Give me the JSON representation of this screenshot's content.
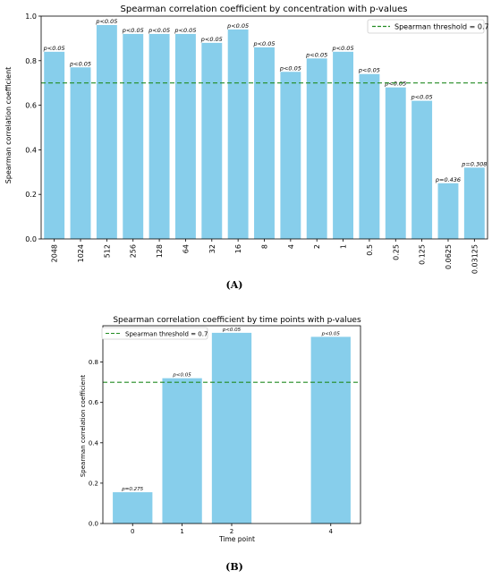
{
  "chart_data": [
    {
      "type": "bar",
      "title": "Spearman correlation coefficient by concentration with p-values",
      "xlabel": "",
      "ylabel": "Spearman correlation coefficient",
      "categories": [
        "2048",
        "1024",
        "512",
        "256",
        "128",
        "64",
        "32",
        "16",
        "8",
        "4",
        "2",
        "1",
        "0.5",
        "0.25",
        "0.125",
        "0.0625",
        "0.03125"
      ],
      "values": [
        0.84,
        0.77,
        0.96,
        0.92,
        0.92,
        0.92,
        0.88,
        0.94,
        0.86,
        0.75,
        0.81,
        0.84,
        0.74,
        0.68,
        0.62,
        0.25,
        0.32
      ],
      "p_labels": [
        "p<0.05",
        "p<0.05",
        "p<0.05",
        "p<0.05",
        "p<0.05",
        "p<0.05",
        "p<0.05",
        "p<0.05",
        "p<0.05",
        "p<0.05",
        "p<0.05",
        "p<0.05",
        "p<0.05",
        "p<0.05",
        "p<0.05",
        "p=0.436",
        "p=0.308"
      ],
      "ylim": [
        0,
        1.0
      ],
      "yticks": [
        "0.0",
        "0.2",
        "0.4",
        "0.6",
        "0.8",
        "1.0"
      ],
      "threshold": 0.7,
      "threshold_label": "Spearman threshold = 0.7",
      "legend_position": "top-right",
      "bar_color": "#87ceeb",
      "threshold_color": "#228b22",
      "grid": false,
      "caption": "(A)"
    },
    {
      "type": "bar",
      "title": "Spearman correlation coefficient by time points with p-values",
      "xlabel": "Time point",
      "ylabel": "Spearman correlation coefficient",
      "x": [
        0,
        1,
        2,
        4
      ],
      "categories": [
        "0",
        "1",
        "2",
        "4"
      ],
      "values": [
        0.155,
        0.72,
        0.945,
        0.925
      ],
      "p_labels": [
        "p=0.275",
        "p<0.05",
        "p<0.05",
        "p<0.05"
      ],
      "ylim": [
        0,
        0.98
      ],
      "yticks": [
        "0.0",
        "0.2",
        "0.4",
        "0.6",
        "0.8"
      ],
      "threshold": 0.7,
      "threshold_label": "Spearman threshold = 0.7",
      "legend_position": "top-left",
      "bar_color": "#87ceeb",
      "threshold_color": "#228b22",
      "grid": false,
      "caption": "(B)"
    }
  ]
}
